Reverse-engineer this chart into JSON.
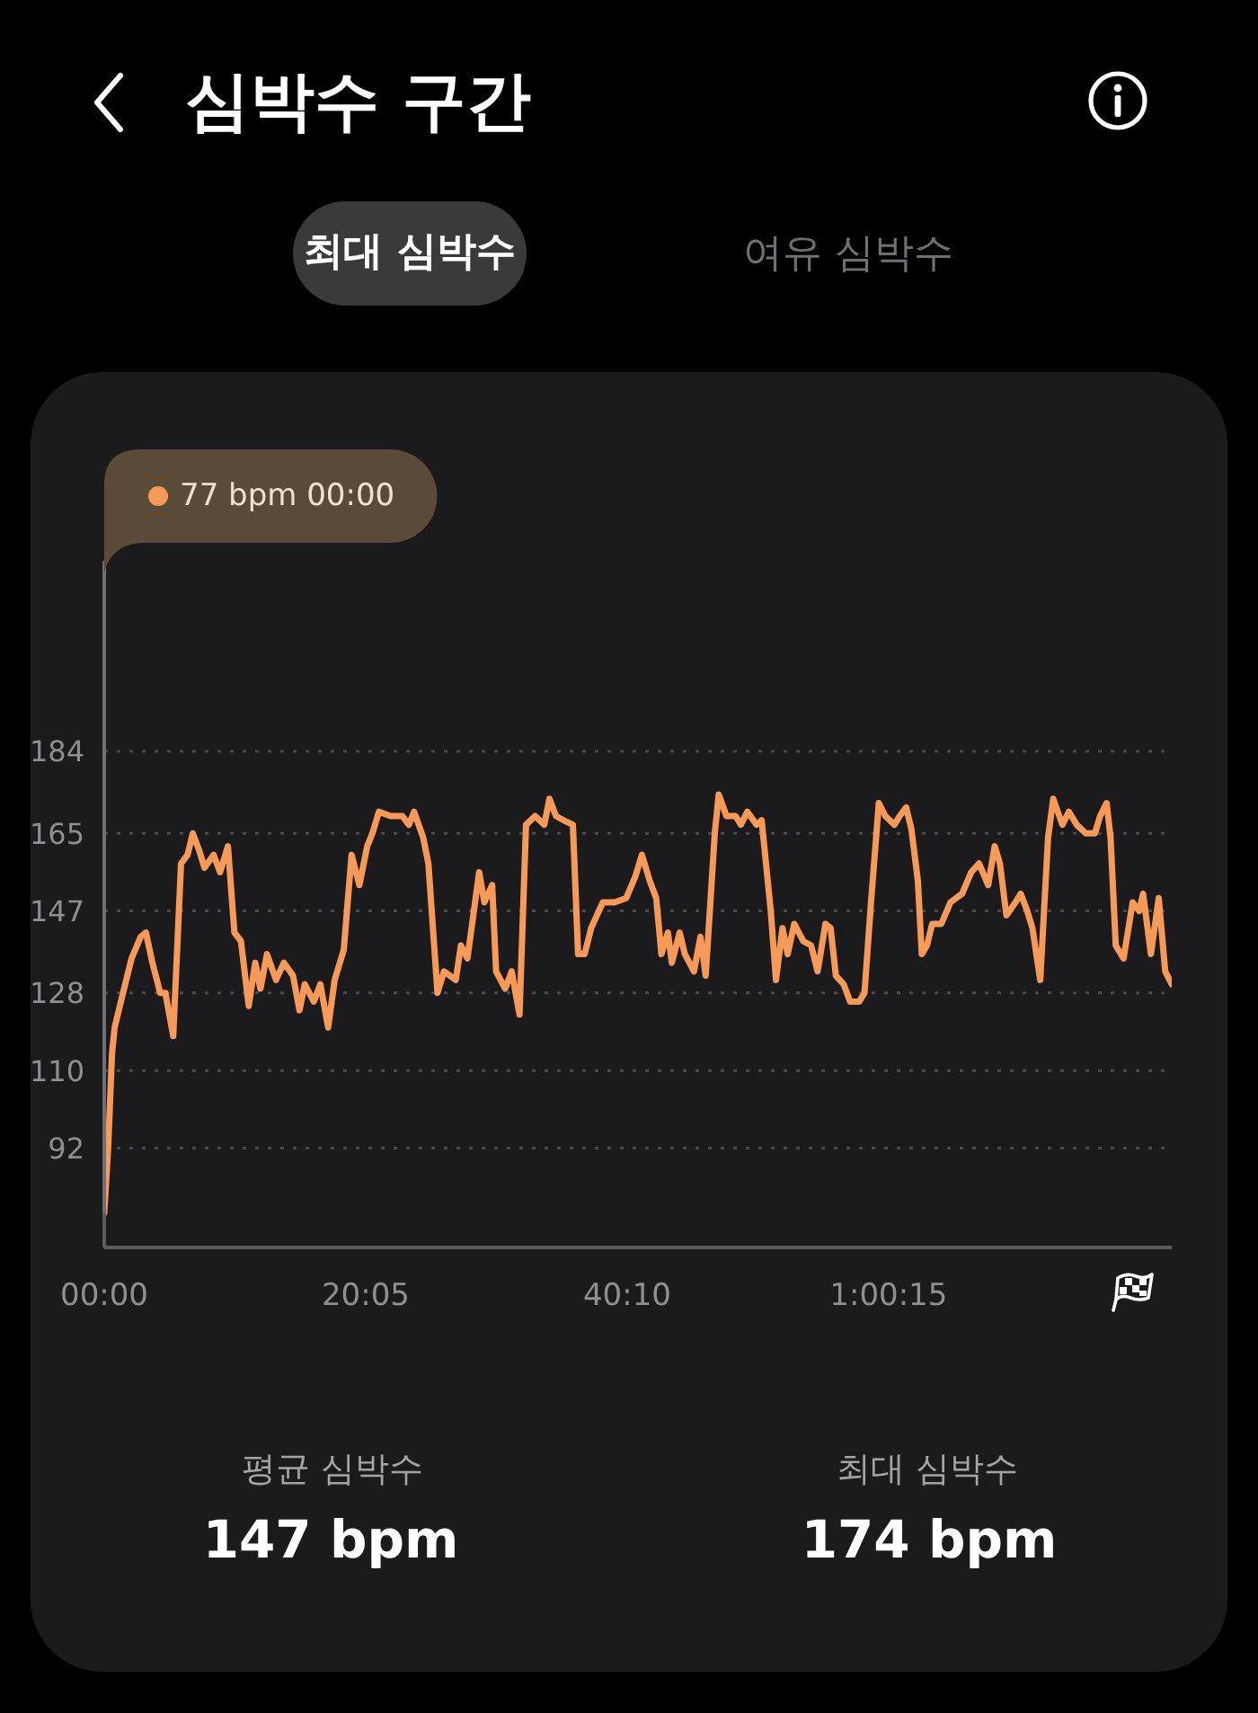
{
  "chart_data": {
    "type": "line",
    "title": "심박수 구간",
    "annotations": [
      "최대 심박수",
      "여유 심박수",
      "77 bpm 00:00",
      "평균 심박수",
      "147 bpm",
      "최대 심박수",
      "174 bpm"
    ],
    "x": [
      0,
      0.3,
      0.6,
      0.8,
      1.2,
      2.1,
      2.8,
      3.2,
      3.7,
      4.3,
      4.7,
      5.3,
      5.9,
      6.4,
      6.8,
      7.3,
      7.7,
      8.4,
      8.9,
      9.5,
      10.0,
      10.5,
      11.1,
      11.6,
      12.0,
      12.5,
      13.2,
      13.8,
      14.5,
      15.0,
      15.4,
      16.1,
      16.6,
      17.2,
      17.7,
      18.4,
      19.0,
      19.6,
      20.2,
      20.6,
      21.1,
      22.0,
      22.9,
      23.4,
      23.8,
      24.5,
      24.9,
      25.6,
      26.1,
      27.0,
      27.4,
      27.9,
      28.8,
      29.2,
      29.8,
      30.1,
      30.8,
      31.3,
      31.9,
      32.4,
      33.1,
      33.8,
      34.2,
      34.7,
      35.3,
      36.0,
      36.4,
      36.9,
      37.4,
      38.3,
      39.2,
      40.1,
      40.8,
      41.3,
      41.9,
      42.4,
      42.8,
      43.3,
      43.6,
      44.2,
      44.6,
      45.3,
      45.8,
      46.2,
      46.9,
      47.2,
      47.8,
      48.5,
      48.9,
      49.4,
      50.1,
      50.5,
      50.7,
      51.2,
      51.6,
      52.1,
      52.5,
      53.0,
      53.7,
      54.3,
      54.8,
      55.4,
      55.8,
      56.2,
      56.8,
      57.3,
      58.0,
      58.4,
      58.9,
      59.5,
      60.0,
      60.7,
      61.1,
      61.6,
      62.0,
      62.5,
      62.8,
      63.2,
      63.6,
      64.3,
      65.0,
      65.9,
      66.6,
      67.2,
      67.9,
      68.4,
      68.8,
      69.3,
      70.0,
      70.4,
      70.9,
      71.3,
      71.9,
      72.5,
      72.9,
      73.6,
      74.1,
      74.7,
      75.4,
      76.1,
      76.5,
      77.0,
      77.3,
      77.7,
      78.3,
      79.0,
      79.5,
      79.8,
      80.4,
      81.0,
      81.5,
      82.0
    ],
    "values": [
      77,
      92,
      114,
      120,
      125,
      136,
      141,
      142,
      135,
      128,
      128,
      118,
      158,
      160,
      165,
      161,
      157,
      160,
      156,
      162,
      142,
      140,
      125,
      135,
      129,
      137,
      131,
      135,
      132,
      124,
      130,
      126,
      130,
      120,
      131,
      138,
      160,
      153,
      162,
      165,
      170,
      169,
      169,
      167,
      170,
      164,
      158,
      128,
      133,
      131,
      139,
      136,
      156,
      149,
      153,
      133,
      129,
      133,
      123,
      167,
      169,
      167,
      173,
      169,
      168,
      167,
      137,
      137,
      143,
      149,
      149,
      150,
      155,
      160,
      154,
      150,
      137,
      142,
      135,
      142,
      137,
      133,
      141,
      132,
      165,
      174,
      169,
      169,
      167,
      170,
      167,
      168,
      162,
      147,
      131,
      143,
      137,
      144,
      140,
      139,
      133,
      144,
      143,
      132,
      130,
      126,
      126,
      128,
      149,
      172,
      169,
      167,
      169,
      171,
      166,
      154,
      137,
      139,
      144,
      144,
      149,
      151,
      156,
      158,
      153,
      162,
      158,
      146,
      149,
      151,
      147,
      143,
      131,
      164,
      173,
      167,
      170,
      167,
      165,
      165,
      169,
      172,
      164,
      139,
      136,
      149,
      147,
      151,
      137,
      150,
      133,
      130
    ],
    "color": "#f89a57",
    "xlim": [
      0,
      82
    ],
    "xticks": [
      {
        "value": 0,
        "label": "00:00"
      },
      {
        "value": 20.08,
        "label": "20:05"
      },
      {
        "value": 40.17,
        "label": "40:10"
      },
      {
        "value": 60.25,
        "label": "1:00:15"
      }
    ],
    "ylim": [
      69,
      184
    ],
    "yticks": [
      92,
      110,
      128,
      147,
      165,
      184
    ],
    "grid": "y",
    "marker": "none",
    "line_style": "solid"
  }
}
